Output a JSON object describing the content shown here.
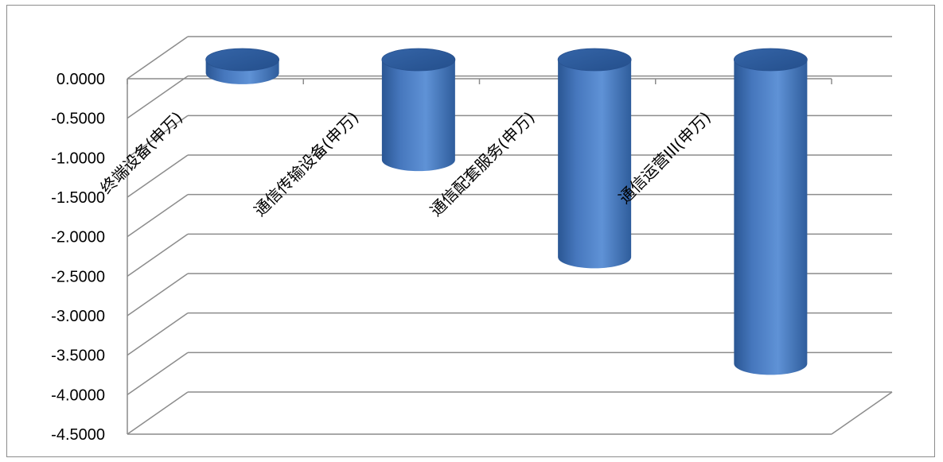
{
  "colors": {
    "bar": "#4a7ec4",
    "bar_dark": "#27518f",
    "bar_light": "#6f9edb",
    "grid": "#8c8c8c",
    "frame": "#8c8c8c",
    "text": "#000000"
  },
  "chart_data": {
    "type": "bar",
    "style": "3d-cylinder",
    "categories": [
      "终端设备(申万)",
      "通信传输设备(申万)",
      "通信配套服务(申万)",
      "通信运营III(申万)"
    ],
    "values": [
      -0.17,
      -1.27,
      -2.5,
      -3.85
    ],
    "ylim": [
      -4.5,
      0
    ],
    "yticks": [
      "0.0000",
      "-0.5000",
      "-1.0000",
      "-1.5000",
      "-2.0000",
      "-2.5000",
      "-3.0000",
      "-3.5000",
      "-4.0000",
      "-4.5000"
    ],
    "ytick_values": [
      0,
      -0.5,
      -1.0,
      -1.5,
      -2.0,
      -2.5,
      -3.0,
      -3.5,
      -4.0,
      -4.5
    ],
    "grid": true,
    "legend": "none",
    "title": "",
    "xlabel": "",
    "ylabel": ""
  }
}
